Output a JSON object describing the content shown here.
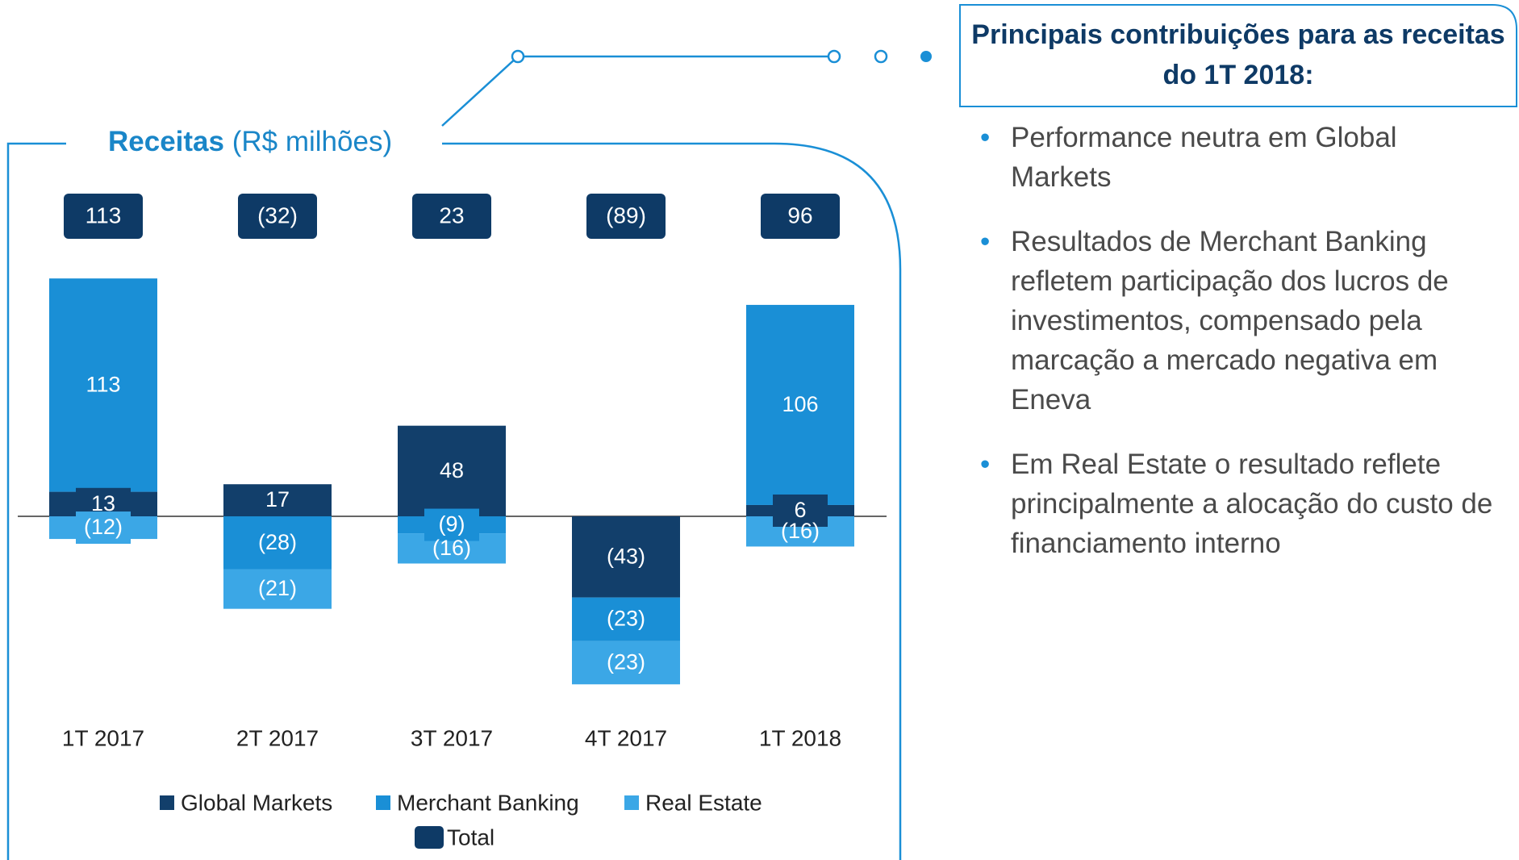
{
  "chart_data": {
    "type": "bar",
    "title": "Receitas",
    "subtitle": "(R$ milhões)",
    "categories": [
      "1T 2017",
      "2T 2017",
      "3T 2017",
      "4T 2017",
      "1T 2018"
    ],
    "series": [
      {
        "name": "Global Markets",
        "color": "#123f6b",
        "values": [
          13,
          17,
          48,
          -43,
          6
        ],
        "value_labels": [
          "13",
          "17",
          "48",
          "(43)",
          "6"
        ]
      },
      {
        "name": "Merchant Banking",
        "color": "#1a8fd6",
        "values": [
          113,
          -28,
          -9,
          -23,
          106
        ],
        "value_labels": [
          "113",
          "(28)",
          "(9)",
          "(23)",
          "106"
        ]
      },
      {
        "name": "Real Estate",
        "color": "#3ba7e6",
        "values": [
          -12,
          -21,
          -16,
          -23,
          -16
        ],
        "value_labels": [
          "(12)",
          "(21)",
          "(16)",
          "(23)",
          "(16)"
        ]
      }
    ],
    "totals": {
      "name": "Total",
      "color": "#0e3a66",
      "values": [
        113,
        -32,
        23,
        -89,
        96
      ],
      "value_labels": [
        "113",
        "(32)",
        "23",
        "(89)",
        "96"
      ]
    }
  },
  "panel": {
    "title": "Principais contribuições para as receitas do 1T 2018:",
    "bullets": [
      "Performance neutra em Global Markets",
      "Resultados de Merchant Banking refletem participação dos lucros de investimentos, compensado pela marcação a mercado negativa em Eneva",
      "Em Real Estate o resultado reflete principalmente a alocação do custo de financiamento interno"
    ]
  }
}
